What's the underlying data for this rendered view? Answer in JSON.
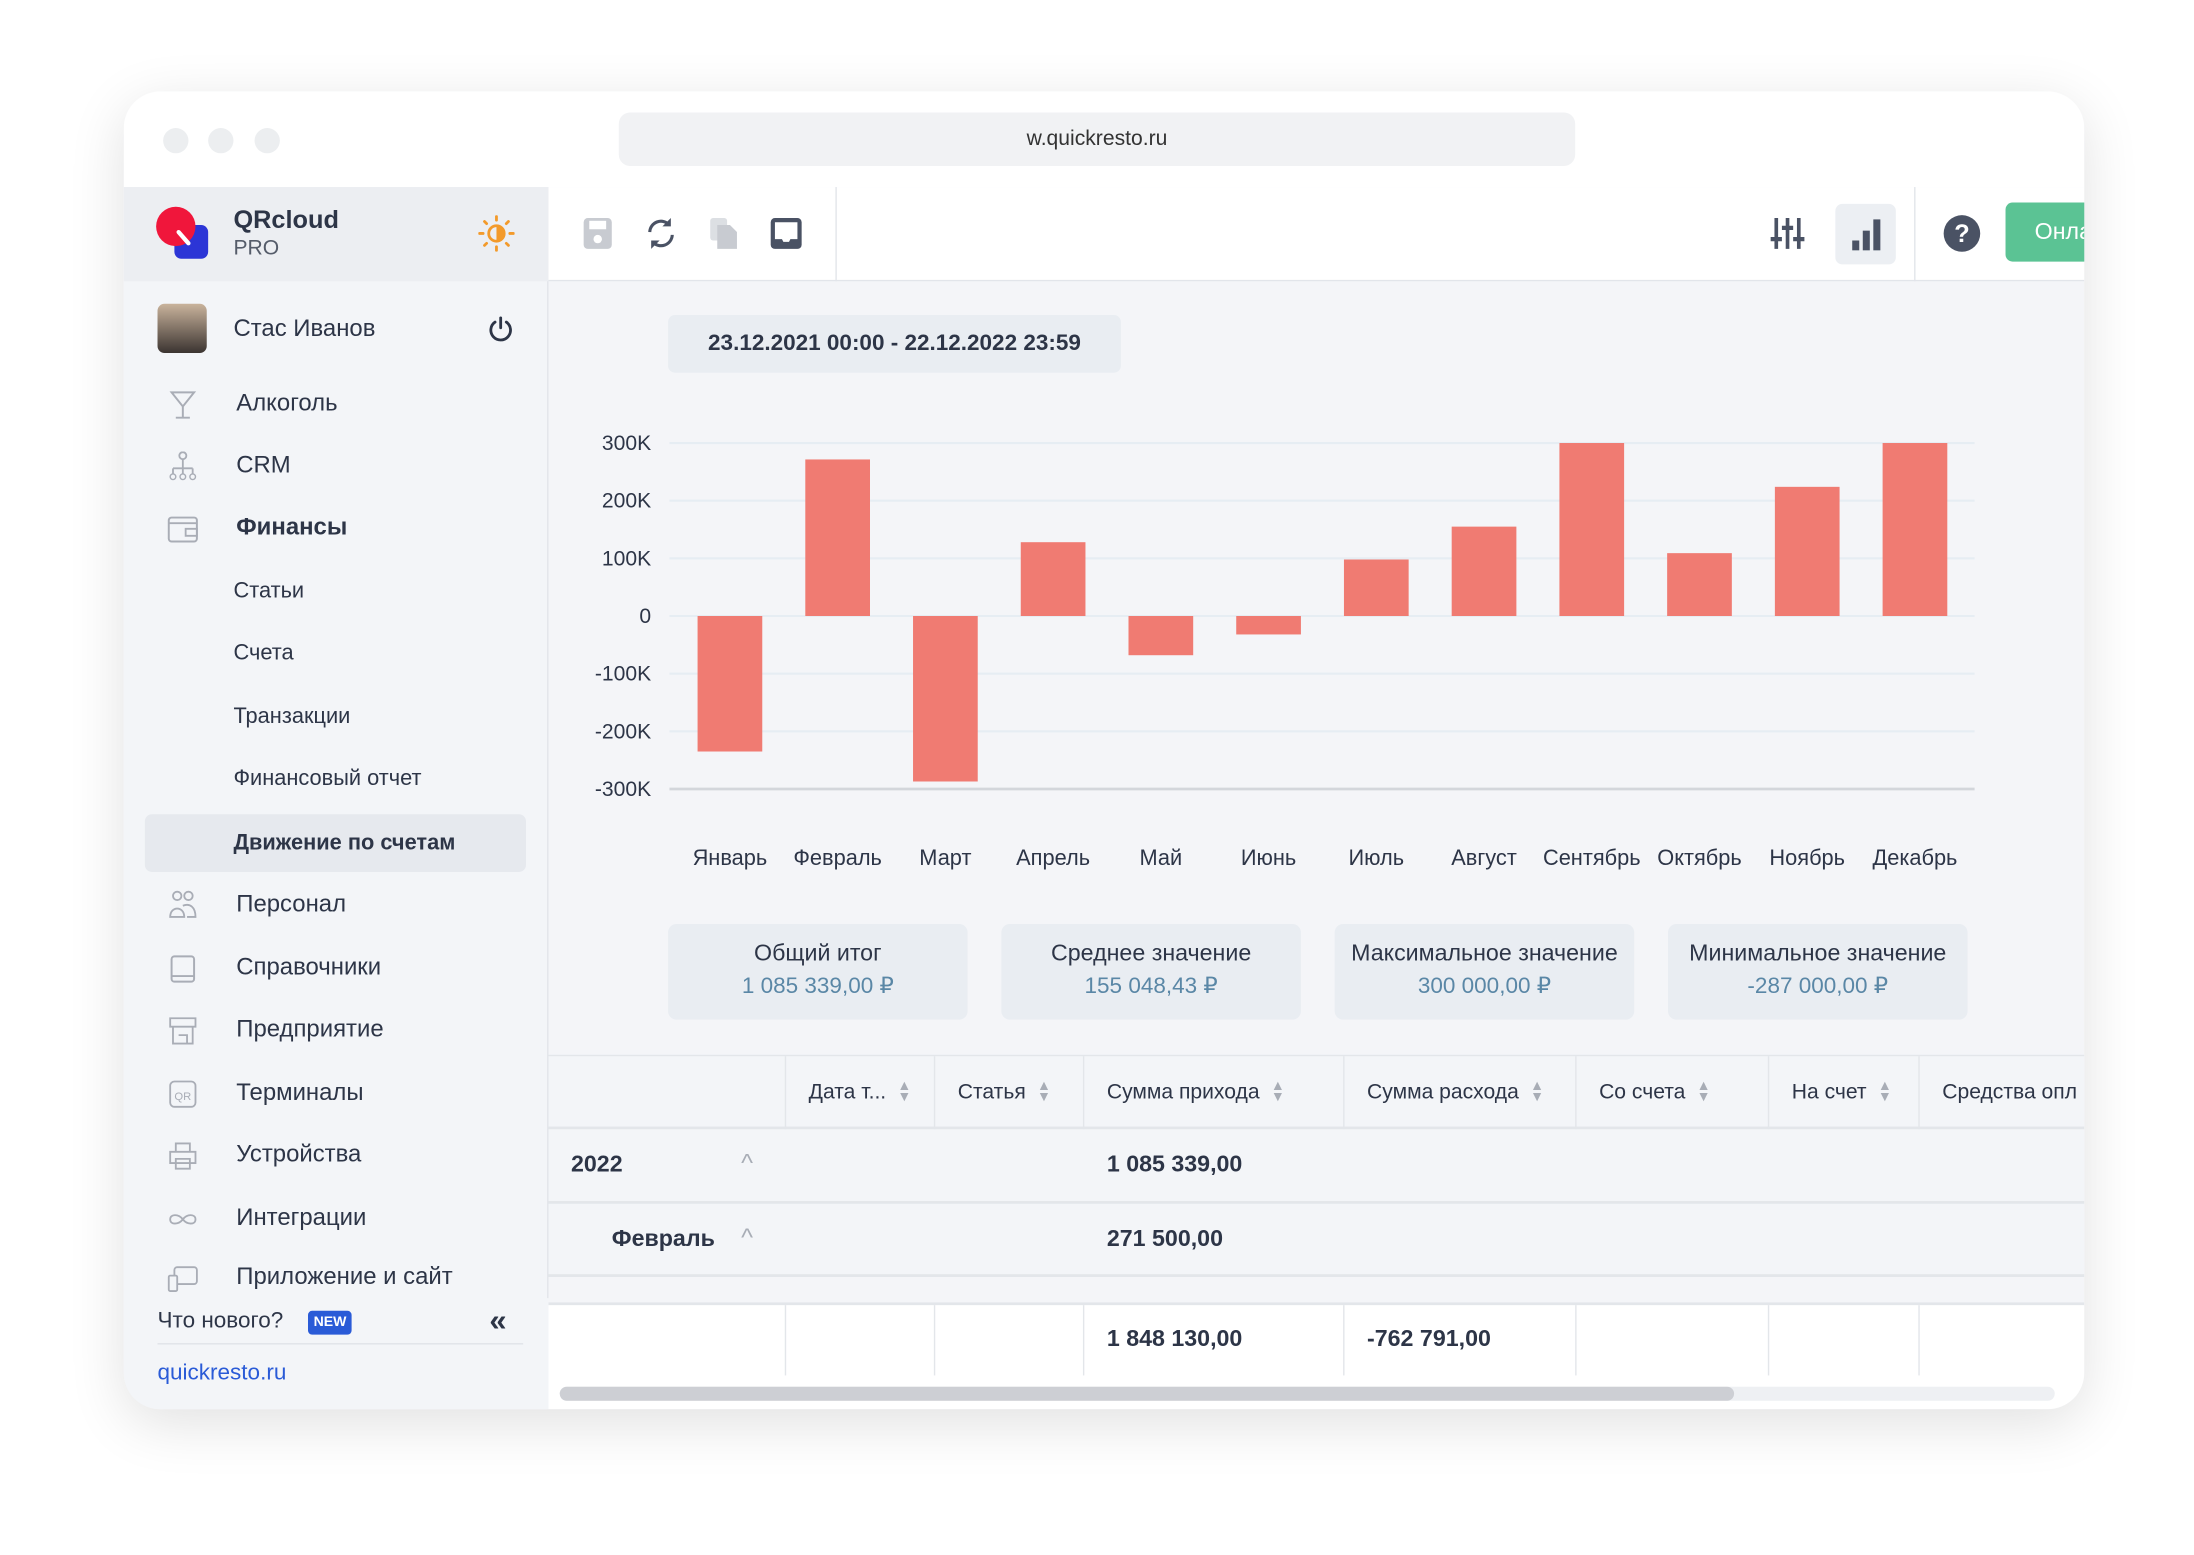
{
  "browser": {
    "url": "w.quickresto.ru"
  },
  "brand": {
    "name": "QRcloud",
    "plan": "PRO"
  },
  "user": {
    "name": "Стас Иванов"
  },
  "sidebar": {
    "items": [
      {
        "label": "Алкоголь",
        "icon": "cocktail-icon"
      },
      {
        "label": "CRM",
        "icon": "org-chart-icon"
      },
      {
        "label": "Финансы",
        "icon": "wallet-icon"
      }
    ],
    "sub_items": [
      {
        "label": "Статьи"
      },
      {
        "label": "Счета"
      },
      {
        "label": "Транзакции"
      },
      {
        "label": "Финансовый отчет"
      },
      {
        "label": "Движение по счетам",
        "active": true
      }
    ],
    "items2": [
      {
        "label": "Персонал",
        "icon": "people-icon"
      },
      {
        "label": "Справочники",
        "icon": "book-icon"
      },
      {
        "label": "Предприятие",
        "icon": "store-icon"
      },
      {
        "label": "Терминалы",
        "icon": "qr-icon"
      },
      {
        "label": "Устройства",
        "icon": "printer-icon"
      },
      {
        "label": "Интеграции",
        "icon": "infinity-icon"
      },
      {
        "label": "Приложение и сайт",
        "icon": "devices-icon"
      }
    ],
    "whats_new": "Что нового?",
    "new_badge": "NEW",
    "site_link": "quickresto.ru"
  },
  "toolbar": {
    "chat_button": "Онлайн-чат",
    "accent": "#5bc394"
  },
  "date_range": "23.12.2021 00:00 - 22.12.2022 23:59",
  "chart_data": {
    "type": "bar",
    "categories": [
      "Январь",
      "Февраль",
      "Март",
      "Апрель",
      "Май",
      "Июнь",
      "Июль",
      "Август",
      "Сентябрь",
      "Октябрь",
      "Ноябрь",
      "Декабрь"
    ],
    "values": [
      -235000,
      271500,
      -287000,
      128000,
      -68000,
      -32000,
      98000,
      155000,
      300000,
      109000,
      224000,
      300000
    ],
    "yticks": [
      "300K",
      "200K",
      "100K",
      "0",
      "-100K",
      "-200K",
      "-300K"
    ],
    "ylim": [
      -300000,
      300000
    ],
    "grid": true,
    "bar_color": "#f07b72"
  },
  "summary": [
    {
      "title": "Общий итог",
      "value": "1 085 339,00 ₽"
    },
    {
      "title": "Среднее значение",
      "value": "155 048,43 ₽"
    },
    {
      "title": "Максимальное значение",
      "value": "300 000,00 ₽"
    },
    {
      "title": "Минимальное значение",
      "value": "-287 000,00 ₽"
    }
  ],
  "table": {
    "columns": [
      "Дата т...",
      "Статья",
      "Сумма прихода",
      "Сумма расхода",
      "Со счета",
      "На счет",
      "Средства опл"
    ],
    "groups": [
      {
        "label": "2022",
        "income": "1 085 339,00"
      },
      {
        "label": "Февраль",
        "income": "271 500,00"
      }
    ],
    "totals": {
      "income": "1 848 130,00",
      "expense": "-762 791,00"
    }
  }
}
